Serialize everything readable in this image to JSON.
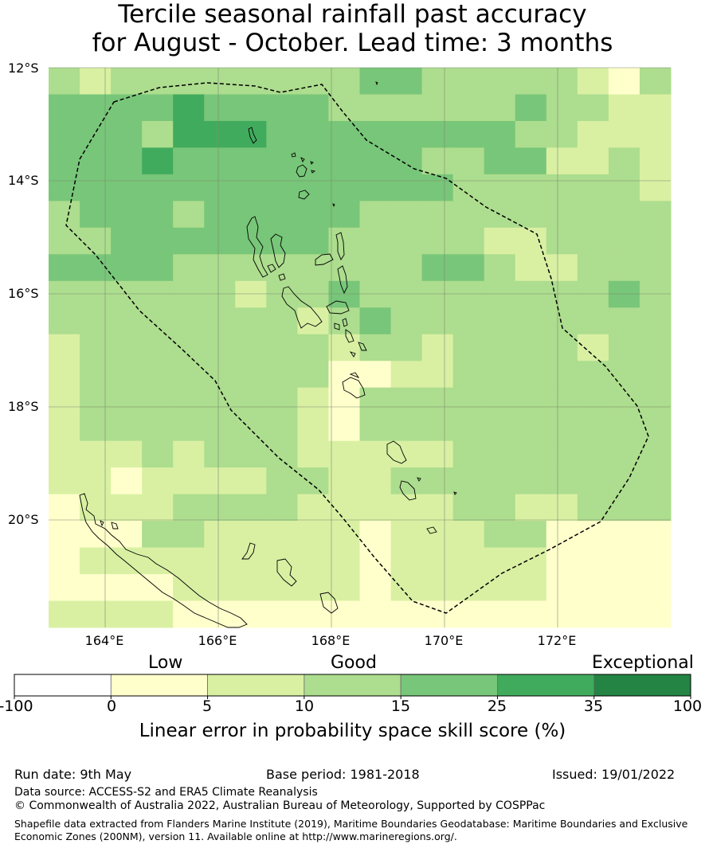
{
  "title": {
    "line1": "Tercile seasonal rainfall past accuracy",
    "line2": "for August - October. Lead time: 3 months"
  },
  "map": {
    "lat_labels": [
      "12°S",
      "14°S",
      "16°S",
      "18°S",
      "20°S"
    ],
    "lon_labels": [
      "164°E",
      "166°E",
      "168°E",
      "170°E",
      "172°E"
    ],
    "lat_range": [
      -21.9,
      -12.0
    ],
    "lon_range": [
      163.0,
      174.0
    ],
    "grid_colors": [
      "#ffffcc",
      "#d9f0a3",
      "#addd8e",
      "#78c679",
      "#41ab5d",
      "#238443"
    ],
    "grid_rows": [
      "21222222223322222102",
      "33334333322222232211",
      "33324443333333322111",
      "33343333333322331121",
      "33333333333332222221",
      "23332333332222222222",
      "22333333322222112222",
      "33332222222233211222",
      "22222212232222222232",
      "22222222123222222222",
      "12222222212212222122",
      "12222222200112222222",
      "12222222102222222222",
      "12222222102222222222",
      "11121222111112222222",
      "11011112211222222222",
      "01112222111112211222",
      "00022111110111220000",
      "01111111110111110000",
      "00001111110111110000",
      "11110000000000000000"
    ],
    "eez_boundary": "Vanuatu EEZ (dashed)"
  },
  "colorbar": {
    "categories": [
      "Low",
      "Good",
      "Exceptional"
    ],
    "ticks": [
      "-100",
      "0",
      "5",
      "10",
      "15",
      "25",
      "35",
      "100"
    ],
    "colors": [
      "#ffffff",
      "#ffffcc",
      "#d9f0a3",
      "#addd8e",
      "#78c679",
      "#41ab5d",
      "#238443"
    ],
    "title": "Linear error in probability space skill score (%)"
  },
  "footer": {
    "run_date": "Run date: 9th May",
    "base_period": "Base period: 1981-2018",
    "issued": "Issued: 19/01/2022",
    "data_source": "Data source: ACCESS-S2 and ERA5 Climate Reanalysis",
    "copyright": "© Commonwealth of Australia 2022, Australian Bureau of Meteorology, Supported by COSPPac",
    "shapefile_line1": "Shapefile data extracted from Flanders Marine Institute (2019), Maritime Boundaries Geodatabase: Maritime Boundaries and Exclusive",
    "shapefile_line2": "Economic Zones (200NM), version 11. Available online at http://www.marineregions.org/."
  }
}
